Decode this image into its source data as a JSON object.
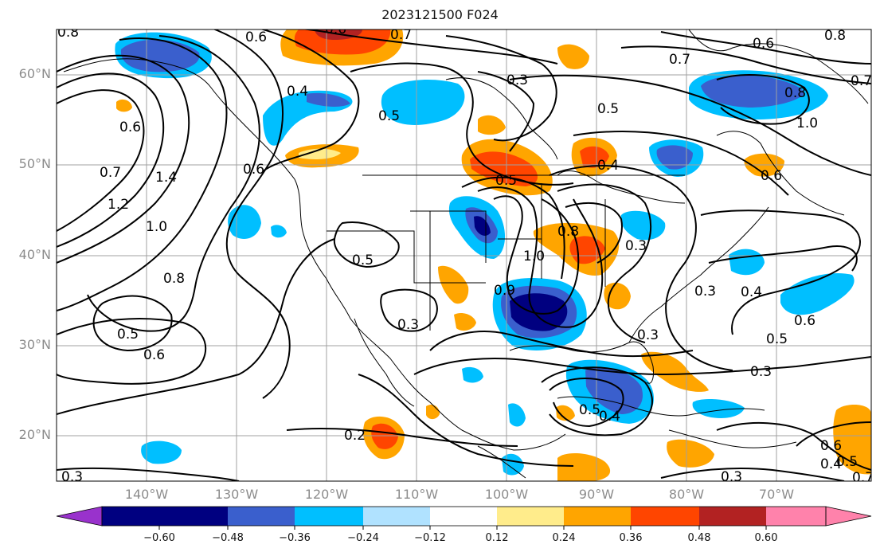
{
  "title": "2023121500 F024",
  "map": {
    "projection": "equirectangular",
    "lon_range": [
      -150,
      -59
    ],
    "lat_range": [
      15,
      65
    ],
    "gridlines": true,
    "lat_labels": [
      "60°N",
      "50°N",
      "40°N",
      "30°N",
      "20°N"
    ],
    "lon_labels": [
      "140°W",
      "130°W",
      "120°W",
      "110°W",
      "100°W",
      "90°W",
      "80°W",
      "70°W"
    ],
    "contour_color": "#000000"
  },
  "contour_labels": [
    "0.8",
    "0.6",
    "0.6",
    "0.7",
    "0.8",
    "0.6",
    "0.7",
    "0.8",
    "0.7",
    "0.4",
    "0.6",
    "0.5",
    "0.3",
    "0.5",
    "0.6",
    "0.4",
    "0.5",
    "0.6",
    "1.0",
    "0.7",
    "1.2",
    "1.4",
    "1.0",
    "0.8",
    "0.5",
    "0.6",
    "0.5",
    "1.0",
    "0.9",
    "0.3",
    "0.8",
    "0.3",
    "0.4",
    "0.6",
    "0.5",
    "0.3",
    "0.5",
    "0.4",
    "0.3",
    "0.2",
    "0.3",
    "0.3",
    "0.3",
    "0.4",
    "0.5",
    "0.7",
    "0.6"
  ],
  "colorbar": {
    "ticks": [
      "−0.60",
      "−0.48",
      "−0.36",
      "−0.24",
      "−0.12",
      "0.12",
      "0.24",
      "0.36",
      "0.48",
      "0.60"
    ],
    "colors": [
      "#9932cc",
      "#000080",
      "#3a5fcd",
      "#00bfff",
      "#b0e2ff",
      "#ffffff",
      "#ffec8b",
      "#ffa500",
      "#ff4500",
      "#b22222",
      "#ff82ab"
    ],
    "extend": "both"
  }
}
